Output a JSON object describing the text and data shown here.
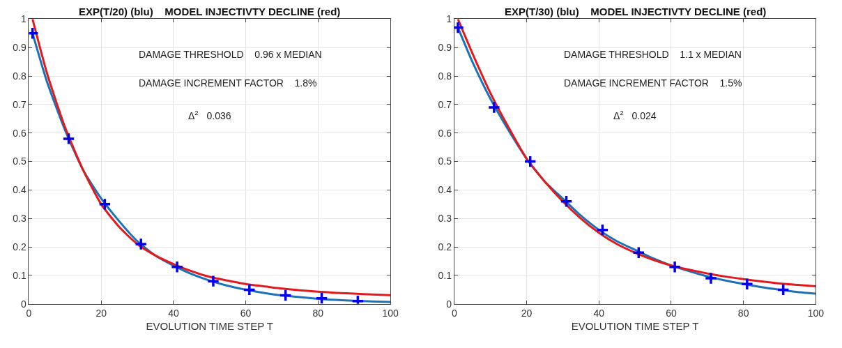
{
  "chart_data": [
    {
      "type": "line",
      "title": "EXP(T/20) (blu)    MODEL INJECTIVTY DECLINE (red)",
      "xlabel": "EVOLUTION TIME STEP T",
      "xlim": [
        0,
        100
      ],
      "xticks": [
        0,
        20,
        40,
        60,
        80,
        100
      ],
      "ylim": [
        0,
        1
      ],
      "yticks": [
        0,
        0.1,
        0.2,
        0.3,
        0.4,
        0.5,
        0.6,
        0.7,
        0.8,
        0.9,
        1
      ],
      "grid": true,
      "annotations": [
        "DAMAGE THRESHOLD    0.96 x MEDIAN",
        "DAMAGE INCREMENT FACTOR    1.8%",
        "Δ$^{2}$   0.036"
      ],
      "series": [
        {
          "color": "#1a72b8",
          "x": [
            1,
            5,
            10,
            15,
            20,
            25,
            30,
            35,
            40,
            45,
            50,
            55,
            60,
            65,
            70,
            75,
            80,
            85,
            90,
            95,
            100
          ],
          "values": [
            0.95,
            0.78,
            0.61,
            0.47,
            0.37,
            0.29,
            0.22,
            0.17,
            0.135,
            0.105,
            0.082,
            0.064,
            0.05,
            0.039,
            0.03,
            0.024,
            0.018,
            0.014,
            0.011,
            0.009,
            0.007
          ]
        },
        {
          "color": "#e3191c",
          "x": [
            1,
            5,
            10,
            15,
            20,
            25,
            30,
            35,
            40,
            45,
            50,
            55,
            60,
            65,
            70,
            75,
            80,
            85,
            90,
            95,
            100
          ],
          "values": [
            1.0,
            0.81,
            0.62,
            0.47,
            0.35,
            0.27,
            0.21,
            0.17,
            0.14,
            0.115,
            0.095,
            0.082,
            0.07,
            0.062,
            0.054,
            0.048,
            0.043,
            0.039,
            0.036,
            0.033,
            0.031
          ]
        },
        {
          "type": "scatter",
          "marker": "cross",
          "color": "#0000ee",
          "x": [
            1,
            11,
            21,
            31,
            41,
            51,
            61,
            71,
            81,
            91
          ],
          "values": [
            0.95,
            0.58,
            0.35,
            0.21,
            0.13,
            0.08,
            0.05,
            0.03,
            0.02,
            0.01
          ]
        }
      ]
    },
    {
      "type": "line",
      "title": "EXP(T/30) (blu)    MODEL INJECTIVTY DECLINE (red)",
      "xlabel": "EVOLUTION TIME STEP T",
      "xlim": [
        0,
        100
      ],
      "xticks": [
        0,
        20,
        40,
        60,
        80,
        100
      ],
      "ylim": [
        0,
        1
      ],
      "yticks": [
        0,
        0.1,
        0.2,
        0.3,
        0.4,
        0.5,
        0.6,
        0.7,
        0.8,
        0.9,
        1
      ],
      "grid": true,
      "annotations": [
        "DAMAGE THRESHOLD    1.1 x MEDIAN",
        "DAMAGE INCREMENT FACTOR    1.5%",
        "Δ$^{2}$   0.024"
      ],
      "series": [
        {
          "color": "#1a72b8",
          "x": [
            1,
            5,
            10,
            15,
            20,
            25,
            30,
            35,
            40,
            45,
            50,
            55,
            60,
            65,
            70,
            75,
            80,
            85,
            90,
            95,
            100
          ],
          "values": [
            0.97,
            0.85,
            0.72,
            0.61,
            0.51,
            0.43,
            0.37,
            0.31,
            0.26,
            0.22,
            0.19,
            0.16,
            0.135,
            0.115,
            0.097,
            0.082,
            0.07,
            0.059,
            0.05,
            0.042,
            0.036
          ]
        },
        {
          "color": "#e3191c",
          "x": [
            1,
            5,
            10,
            15,
            20,
            25,
            30,
            35,
            40,
            45,
            50,
            55,
            60,
            65,
            70,
            75,
            80,
            85,
            90,
            95,
            100
          ],
          "values": [
            1.0,
            0.88,
            0.74,
            0.62,
            0.51,
            0.43,
            0.36,
            0.3,
            0.25,
            0.21,
            0.18,
            0.155,
            0.135,
            0.12,
            0.107,
            0.096,
            0.087,
            0.079,
            0.072,
            0.067,
            0.062
          ]
        },
        {
          "type": "scatter",
          "marker": "cross",
          "color": "#0000ee",
          "x": [
            1,
            11,
            21,
            31,
            41,
            51,
            61,
            71,
            81,
            91
          ],
          "values": [
            0.97,
            0.69,
            0.5,
            0.36,
            0.26,
            0.18,
            0.13,
            0.09,
            0.07,
            0.05
          ]
        }
      ]
    }
  ]
}
